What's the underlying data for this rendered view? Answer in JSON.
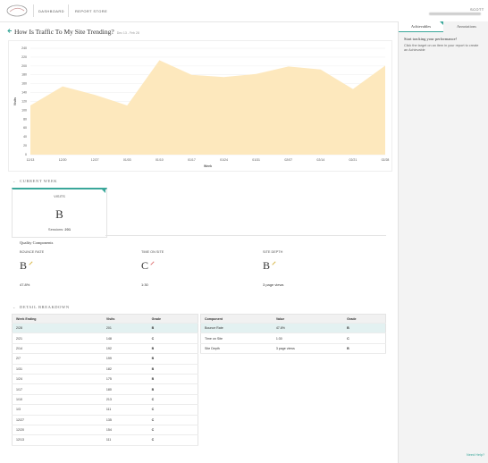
{
  "header": {
    "nav": [
      "DASHBOARD",
      "REPORT STORE"
    ],
    "user": "SCOTT"
  },
  "page_title": "How Is Traffic To My Site Trending?",
  "date_range": "Dec 13 - Feb 28",
  "chart_data": {
    "type": "area",
    "categories": [
      "12/13",
      "12/20",
      "12/27",
      "01/03",
      "01/10",
      "01/17",
      "01/24",
      "01/31",
      "02/07",
      "02/14",
      "02/21",
      "02/28"
    ],
    "values": [
      111,
      154,
      135,
      111,
      213,
      180,
      175,
      182,
      199,
      192,
      148,
      201
    ],
    "color": "#fde8bd",
    "ylim": [
      0,
      240
    ],
    "yticks": [
      0,
      20,
      40,
      60,
      80,
      100,
      120,
      140,
      160,
      180,
      200,
      220,
      240
    ],
    "x_label": "Week",
    "y_label": "Visits",
    "grid": true
  },
  "current_week": {
    "heading": "CURRENT WEEK",
    "card": {
      "title": "VISITS",
      "grade": "B",
      "sessions_label": "Sessions:",
      "sessions": 201
    },
    "quality_heading": "Quality Components",
    "components": [
      {
        "name": "BOUNCE RATE",
        "grade": "B",
        "value": "47.8%"
      },
      {
        "name": "TIME ON SITE",
        "grade": "C",
        "value": "1:30"
      },
      {
        "name": "SITE DEPTH",
        "grade": "B",
        "value": "3 page views"
      }
    ]
  },
  "detail": {
    "heading": "DETAIL BREAKDOWN",
    "weeks_table": {
      "columns": [
        "Week Ending",
        "Visits",
        "Grade"
      ],
      "rows": [
        [
          "2/28",
          201,
          "B"
        ],
        [
          "2/21",
          148,
          "C"
        ],
        [
          "2/14",
          192,
          "B"
        ],
        [
          "2/7",
          199,
          "B"
        ],
        [
          "1/31",
          182,
          "B"
        ],
        [
          "1/24",
          175,
          "B"
        ],
        [
          "1/17",
          180,
          "B"
        ],
        [
          "1/10",
          213,
          "C"
        ],
        [
          "1/3",
          111,
          "C"
        ],
        [
          "12/27",
          135,
          "C"
        ],
        [
          "12/20",
          154,
          "C"
        ],
        [
          "12/13",
          111,
          "C"
        ]
      ]
    },
    "components_table": {
      "columns": [
        "Component",
        "Value",
        "Grade"
      ],
      "rows": [
        [
          "Bounce Rate",
          "47.8%",
          "B"
        ],
        [
          "Time on Site",
          "1:30",
          "C"
        ],
        [
          "Site Depth",
          "3 page views",
          "B"
        ]
      ]
    }
  },
  "sidebar": {
    "tabs": [
      "Achievables",
      "Annotations"
    ],
    "heading": "Start tracking your performance!",
    "text": "Click the target on an item in your report to create an Achievable",
    "help": "Need Help?"
  }
}
